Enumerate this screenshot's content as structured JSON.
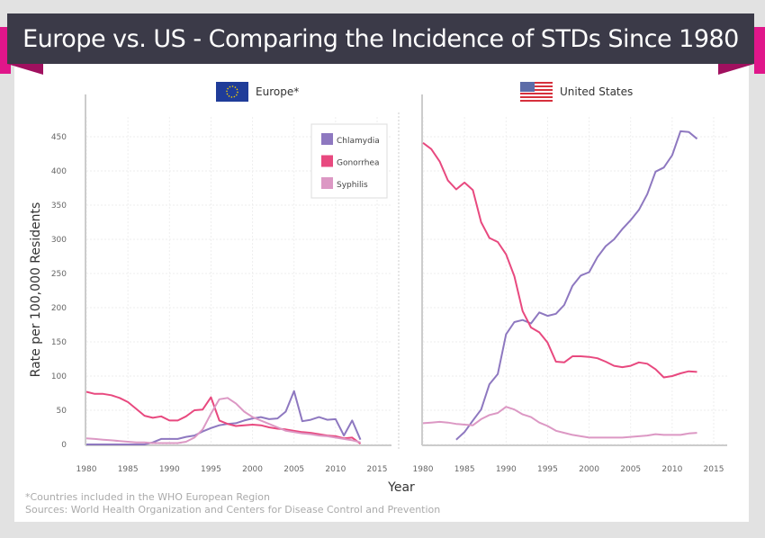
{
  "title": "Europe vs. US - Comparing the Incidence of STDs Since 1980",
  "colors": {
    "banner": "#3b3a48",
    "accent": "#e0168a",
    "chlamydia": "#8e78c0",
    "gonorrhea": "#e8497f",
    "syphilis": "#dc98c4"
  },
  "footnotes": [
    "*Countries included in the WHO European Region",
    "Sources: World Health Organization and Centers for Disease Control and Prevention"
  ],
  "chart_data": [
    {
      "type": "line",
      "title": "Europe*",
      "icon": "eu-flag-icon",
      "xlabel": "Year",
      "ylabel": "Rate per 100,000 Residents",
      "xlim": [
        1980,
        2017
      ],
      "ylim": [
        0,
        460
      ],
      "xticks": [
        1980,
        1985,
        1990,
        1995,
        2000,
        2005,
        2010,
        2015
      ],
      "yticks": [
        0,
        50,
        100,
        150,
        200,
        250,
        300,
        350,
        400,
        450
      ],
      "grid": true,
      "legend": "top-right",
      "x_start": 1980,
      "series": [
        {
          "name": "Chlamydia",
          "values": [
            0,
            0,
            0,
            0,
            0,
            0,
            0,
            0,
            3,
            8,
            8,
            8,
            11,
            13,
            19,
            24,
            28,
            30,
            31,
            35,
            38,
            40,
            37,
            38,
            48,
            78,
            34,
            36,
            40,
            36,
            37,
            13,
            35,
            7
          ]
        },
        {
          "name": "Gonorrhea",
          "values": [
            77,
            74,
            74,
            72,
            68,
            62,
            52,
            42,
            39,
            41,
            35,
            35,
            41,
            50,
            51,
            69,
            35,
            30,
            27,
            28,
            29,
            28,
            25,
            23,
            22,
            20,
            18,
            17,
            15,
            13,
            12,
            9,
            10,
            1
          ]
        },
        {
          "name": "Syphilis",
          "values": [
            9,
            8,
            7,
            6,
            5,
            4,
            3,
            3,
            2,
            2,
            2,
            2,
            4,
            10,
            22,
            45,
            66,
            68,
            60,
            48,
            40,
            35,
            30,
            25,
            20,
            18,
            16,
            15,
            13,
            12,
            10,
            8,
            6,
            3
          ]
        }
      ]
    },
    {
      "type": "line",
      "title": "United States",
      "icon": "us-flag-icon",
      "xlabel": "Year",
      "xlim": [
        1980,
        2017
      ],
      "ylim": [
        0,
        460
      ],
      "xticks": [
        1980,
        1985,
        1990,
        1995,
        2000,
        2005,
        2010,
        2015
      ],
      "grid": true,
      "x_start": 1980,
      "series": [
        {
          "name": "Chlamydia",
          "values": [
            null,
            null,
            null,
            null,
            7,
            18,
            35,
            51,
            88,
            103,
            161,
            179,
            182,
            177,
            193,
            188,
            191,
            204,
            232,
            247,
            252,
            274,
            290,
            300,
            315,
            328,
            343,
            366,
            399,
            405,
            423,
            458,
            457,
            447
          ]
        },
        {
          "name": "Gonorrhea",
          "values": [
            441,
            432,
            414,
            386,
            373,
            383,
            372,
            325,
            302,
            296,
            278,
            246,
            195,
            171,
            164,
            149,
            121,
            120,
            129,
            129,
            128,
            126,
            121,
            115,
            113,
            115,
            120,
            118,
            110,
            98,
            100,
            104,
            107,
            106
          ]
        },
        {
          "name": "Syphilis",
          "values": [
            31,
            32,
            33,
            32,
            30,
            29,
            28,
            37,
            43,
            46,
            55,
            51,
            44,
            40,
            32,
            27,
            20,
            17,
            14,
            12,
            10,
            10,
            10,
            10,
            10,
            11,
            12,
            13,
            15,
            14,
            14,
            14,
            16,
            17
          ]
        }
      ]
    }
  ]
}
